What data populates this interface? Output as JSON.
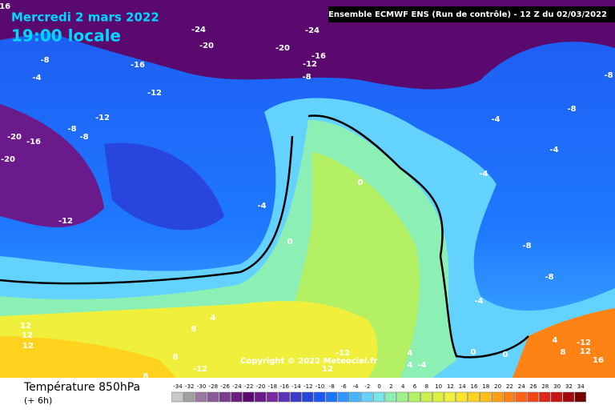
{
  "header": {
    "date": "Mercredi 2 mars 2022",
    "time": "19:00 locale",
    "model": "Ensemble ECMWF ENS  (Run de contrôle)  -  12 Z du 02/03/2022",
    "copyright": "Copyright © 2022 Meteociel.fr"
  },
  "footer": {
    "title": "Température 850hPa",
    "step": "(+ 6h)"
  },
  "contour_labels": [
    -16,
    -24,
    -24,
    -20,
    -20,
    -16,
    -12,
    -8,
    -16,
    -8,
    -4,
    -12,
    -12,
    -8,
    -8,
    -20,
    -16,
    -20,
    -12,
    -4,
    0,
    0,
    -8,
    -8,
    -4,
    -4,
    -4,
    -8,
    -8,
    -4,
    4,
    8,
    12,
    12,
    12,
    8,
    8,
    -12,
    12,
    -12,
    4,
    4,
    -4,
    0,
    0,
    4,
    8,
    12,
    16,
    -12
  ],
  "colorbar": {
    "ticks": [
      -34,
      -32,
      -30,
      -28,
      -26,
      -24,
      -22,
      -20,
      -18,
      -16,
      -14,
      -12,
      -10,
      -8,
      -6,
      -4,
      -2,
      0,
      2,
      4,
      6,
      8,
      10,
      12,
      14,
      16,
      18,
      20,
      22,
      24,
      26,
      28,
      30,
      32,
      34
    ],
    "colors": [
      "#c8c8c8",
      "#a0a0a0",
      "#9a7aa0",
      "#8a5a96",
      "#7a3c8c",
      "#6e1e7e",
      "#5a0a6e",
      "#6a1a8a",
      "#7a2aa0",
      "#5a32b4",
      "#3c3cc8",
      "#2846dc",
      "#1e5af0",
      "#1e78ff",
      "#3296ff",
      "#46b4ff",
      "#64d2ff",
      "#78e6e6",
      "#8cf0b4",
      "#a0f08c",
      "#b4f064",
      "#c8f050",
      "#dcf03c",
      "#f0f03c",
      "#fae628",
      "#ffd21e",
      "#ffbe14",
      "#ffa014",
      "#ff8214",
      "#ff6414",
      "#f04614",
      "#dc2814",
      "#c81414",
      "#a00a0a",
      "#780000"
    ]
  }
}
